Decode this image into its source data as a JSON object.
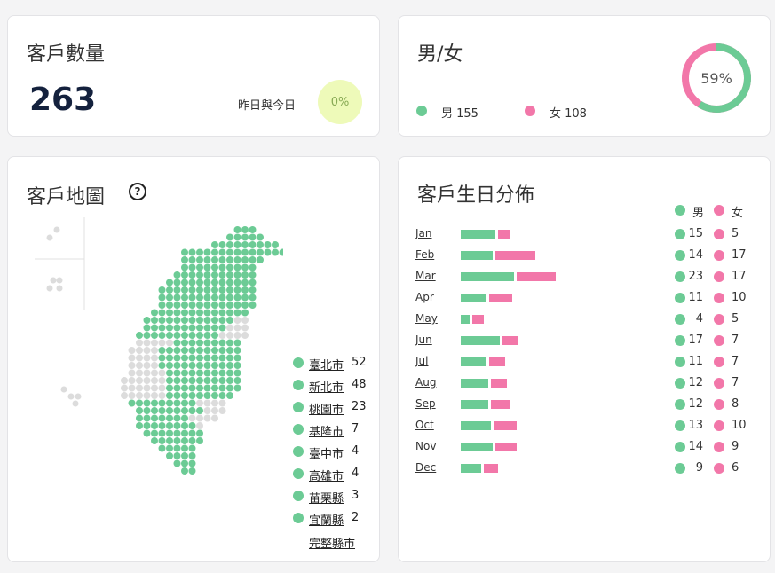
{
  "customer_count": {
    "title": "客戶數量",
    "value": "263",
    "compare_label": "昨日與今日",
    "change": "0%"
  },
  "gender": {
    "title": "男/女",
    "male_label": "男 155",
    "female_label": "女 108",
    "male_count": 155,
    "female_count": 108,
    "male_percent_label": "59%",
    "male_fraction": 0.59,
    "colors": {
      "male": "#6ccb95",
      "female": "#f277a9"
    }
  },
  "map": {
    "title": "客戶地圖",
    "help_symbol": "?",
    "cities": [
      {
        "name": "臺北市",
        "count": "52"
      },
      {
        "name": "新北市",
        "count": "48"
      },
      {
        "name": "桃園市",
        "count": "23"
      },
      {
        "name": "基隆市",
        "count": "7"
      },
      {
        "name": "臺中市",
        "count": "4"
      },
      {
        "name": "高雄市",
        "count": "4"
      },
      {
        "name": "苗栗縣",
        "count": "3"
      },
      {
        "name": "宜蘭縣",
        "count": "2"
      }
    ],
    "all_link": "完整縣市"
  },
  "birthday": {
    "title": "客戶生日分佈",
    "header_male": "男",
    "header_female": "女",
    "months": [
      {
        "label": "Jan",
        "male": 15,
        "female": 5
      },
      {
        "label": "Feb",
        "male": 14,
        "female": 17
      },
      {
        "label": "Mar",
        "male": 23,
        "female": 17
      },
      {
        "label": "Apr",
        "male": 11,
        "female": 10
      },
      {
        "label": "May",
        "male": 4,
        "female": 5
      },
      {
        "label": "Jun",
        "male": 17,
        "female": 7
      },
      {
        "label": "Jul",
        "male": 11,
        "female": 7
      },
      {
        "label": "Aug",
        "male": 12,
        "female": 7
      },
      {
        "label": "Sep",
        "male": 12,
        "female": 8
      },
      {
        "label": "Oct",
        "male": 13,
        "female": 10
      },
      {
        "label": "Nov",
        "male": 14,
        "female": 9
      },
      {
        "label": "Dec",
        "male": 9,
        "female": 6
      }
    ]
  }
}
